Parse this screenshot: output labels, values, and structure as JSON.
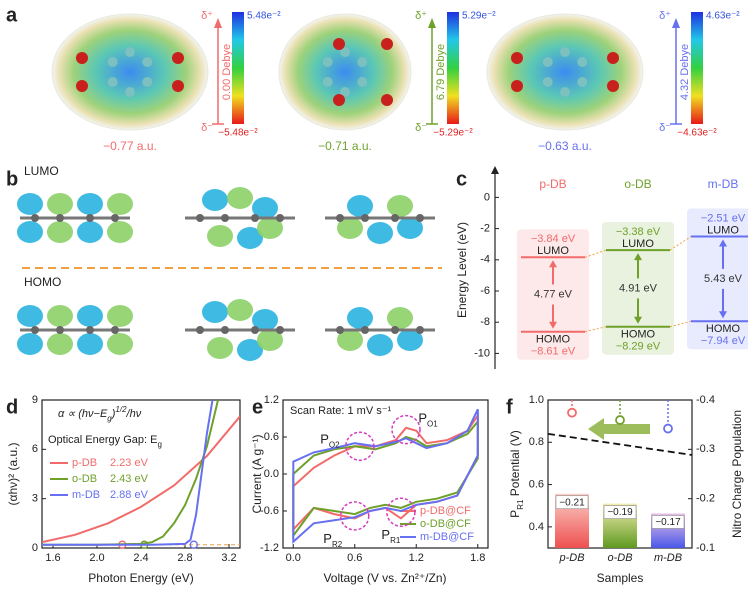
{
  "panel_a": {
    "label": "a",
    "delta_plus": "δ⁺",
    "delta_minus": "δ⁻",
    "molecules": [
      {
        "dipole": "0.00 Debye",
        "max": "5.48e⁻²",
        "min": "−5.48e⁻²",
        "charge": "−0.77 a.u.",
        "color": "#f26b6b"
      },
      {
        "dipole": "6.79 Debye",
        "max": "5.29e⁻²",
        "min": "−5.29e⁻²",
        "charge": "−0.71 a.u.",
        "color": "#6ea12a"
      },
      {
        "dipole": "4.32 Debye",
        "max": "4.63e⁻²",
        "min": "−4.63e⁻²",
        "charge": "−0.63 a.u.",
        "color": "#6670f0"
      }
    ]
  },
  "panel_b": {
    "label": "b",
    "lumo": "LUMO",
    "homo": "HOMO"
  },
  "chart_data": [
    {
      "type": "energy-level",
      "panel": "c",
      "ylabel": "Energy Level (eV)",
      "categories": [
        "p-DB",
        "o-DB",
        "m-DB"
      ],
      "colors": [
        "#f26b6b",
        "#6ea12a",
        "#6670f0"
      ],
      "lumo": {
        "name": "LUMO",
        "values": [
          -3.84,
          -3.38,
          -2.51
        ],
        "value_labels": [
          "−3.84 eV",
          "−3.38 eV",
          "−2.51 eV"
        ]
      },
      "homo": {
        "name": "HOMO",
        "values": [
          -8.61,
          -8.29,
          -7.94
        ],
        "value_labels": [
          "−8.61 eV",
          "−8.29 eV",
          "−7.94 eV"
        ]
      },
      "gap": {
        "values": [
          4.77,
          4.91,
          5.43
        ],
        "value_labels": [
          "4.77 eV",
          "4.91 eV",
          "5.43 eV"
        ]
      },
      "ylim": [
        -11,
        1.5
      ],
      "yticks": [
        0,
        -2,
        -4,
        -6,
        -8,
        -10
      ]
    },
    {
      "type": "line",
      "panel": "d",
      "xlabel": "Photon Energy (eV)",
      "ylabel": "(αhν)² (a.u.)",
      "formula": [
        "α ∝ (hν−E",
        "g",
        ")",
        "1/2",
        "/hν"
      ],
      "gap_note": [
        "Optical Energy Gap: E",
        "g"
      ],
      "xlim": [
        1.5,
        3.3
      ],
      "xticks": [
        1.6,
        {
          "value": 2.0,
          "label": "2.0"
        },
        2.4,
        2.8,
        3.2
      ],
      "ylim": [
        0,
        9
      ],
      "yticks": [
        0,
        3,
        6,
        9
      ],
      "baseline": 0.2,
      "baseline_color": "#f0a040",
      "series": [
        {
          "name": "p-DB",
          "color": "#f26b6b",
          "gap": 2.23,
          "gap_label": "2.23 eV",
          "x": [
            1.5,
            1.8,
            2.1,
            2.4,
            2.7,
            3.0,
            3.3
          ],
          "values": [
            0.35,
            0.8,
            1.5,
            2.5,
            3.8,
            5.6,
            8.0
          ]
        },
        {
          "name": "o-DB",
          "color": "#6ea12a",
          "gap": 2.43,
          "gap_label": "2.43 eV",
          "x": [
            1.5,
            2.0,
            2.4,
            2.5,
            2.6,
            2.7,
            2.8,
            2.9,
            3.0,
            3.1
          ],
          "values": [
            0.2,
            0.2,
            0.25,
            0.35,
            0.7,
            1.5,
            2.6,
            4.2,
            6.2,
            9
          ]
        },
        {
          "name": "m-DB",
          "color": "#6670f0",
          "gap": 2.88,
          "gap_label": "2.88 eV",
          "x": [
            1.5,
            2.5,
            2.8,
            2.85,
            2.9,
            2.95,
            3.0,
            3.05
          ],
          "values": [
            0.2,
            0.2,
            0.25,
            0.5,
            2.0,
            4.5,
            7,
            9
          ]
        }
      ]
    },
    {
      "type": "cv",
      "panel": "e",
      "xlabel": "Voltage (V vs. Zn²⁺/Zn)",
      "ylabel": "Current (A g⁻¹)",
      "note": "Scan Rate: 1 mV s⁻¹",
      "xlim": [
        -0.1,
        1.9
      ],
      "xticks": [
        {
          "value": 0.0,
          "label": "0.0"
        },
        0.6,
        1.2,
        1.8
      ],
      "ylim": [
        -1.2,
        1.2
      ],
      "yticks": [
        -1.2,
        -0.6,
        {
          "value": 0.0,
          "label": "0.0"
        },
        0.6,
        1.2
      ],
      "peak_color": "#d63cc0",
      "peaks": [
        {
          "label": [
            "P",
            "O1"
          ],
          "x": 1.1,
          "y": 0.72
        },
        {
          "label": [
            "P",
            "O2"
          ],
          "x": 0.65,
          "y": 0.45
        },
        {
          "label": [
            "P",
            "R1"
          ],
          "x": 1.05,
          "y": -0.62
        },
        {
          "label": [
            "P",
            "R2"
          ],
          "x": 0.6,
          "y": -0.68
        }
      ],
      "series": [
        {
          "name": "p-DB@CF",
          "color": "#f26b6b",
          "x": [
            0.0,
            0.2,
            0.4,
            0.6,
            0.8,
            1.0,
            1.1,
            1.2,
            1.3,
            1.5,
            1.7,
            1.8,
            1.8,
            1.6,
            1.4,
            1.2,
            1.05,
            0.9,
            0.75,
            0.6,
            0.4,
            0.2,
            0.0
          ],
          "values": [
            -0.2,
            0.1,
            0.3,
            0.45,
            0.45,
            0.55,
            0.75,
            0.7,
            0.5,
            0.55,
            0.7,
            0.95,
            0.3,
            -0.35,
            -0.45,
            -0.5,
            -0.72,
            -0.55,
            -0.6,
            -0.72,
            -0.65,
            -0.55,
            -0.9
          ]
        },
        {
          "name": "o-DB@CF",
          "color": "#6ea12a",
          "x": [
            0.0,
            0.2,
            0.4,
            0.6,
            0.8,
            1.0,
            1.1,
            1.2,
            1.3,
            1.5,
            1.7,
            1.8,
            1.8,
            1.6,
            1.4,
            1.2,
            1.05,
            0.9,
            0.75,
            0.6,
            0.4,
            0.2,
            0.0
          ],
          "values": [
            0.0,
            0.3,
            0.4,
            0.45,
            0.4,
            0.5,
            0.6,
            0.55,
            0.45,
            0.5,
            0.65,
            0.85,
            0.25,
            -0.3,
            -0.4,
            -0.45,
            -0.55,
            -0.5,
            -0.55,
            -0.65,
            -0.6,
            -0.55,
            -1.0
          ]
        },
        {
          "name": "m-DB@CF",
          "color": "#6670f0",
          "x": [
            0.0,
            0.2,
            0.4,
            0.6,
            0.8,
            1.0,
            1.1,
            1.2,
            1.3,
            1.5,
            1.7,
            1.8,
            1.8,
            1.6,
            1.4,
            1.2,
            1.05,
            0.9,
            0.75,
            0.6,
            0.4,
            0.2,
            0.0
          ],
          "values": [
            0.2,
            0.35,
            0.42,
            0.5,
            0.45,
            0.52,
            0.58,
            0.5,
            0.42,
            0.5,
            0.7,
            1.05,
            0.3,
            -0.35,
            -0.45,
            -0.5,
            -0.6,
            -0.55,
            -0.6,
            -0.7,
            -0.75,
            -0.8,
            -1.1
          ]
        }
      ]
    },
    {
      "type": "bar-dot",
      "panel": "f",
      "xlabel": "Samples",
      "ylabel": [
        "P",
        "R1",
        " Potential (V)"
      ],
      "y2label": "Nitro Charge Population",
      "categories": [
        "p-DB",
        "o-DB",
        "m-DB"
      ],
      "colors": [
        "#f26b6b",
        "#6ea12a",
        "#6670f0"
      ],
      "ylim": [
        0.3,
        1.0
      ],
      "yticks": [
        0.4,
        0.6,
        0.8,
        {
          "value": 1.0,
          "label": "1.0"
        }
      ],
      "y2lim": [
        -0.1,
        -0.4
      ],
      "y2ticks": [
        -0.1,
        -0.2,
        -0.3,
        -0.4
      ],
      "potential": [
        0.94,
        0.905,
        0.865
      ],
      "charge": {
        "axis": "y2",
        "values": [
          -0.21,
          -0.19,
          -0.17
        ],
        "value_labels": [
          "−0.21",
          "−0.19",
          "−0.17"
        ]
      }
    }
  ]
}
